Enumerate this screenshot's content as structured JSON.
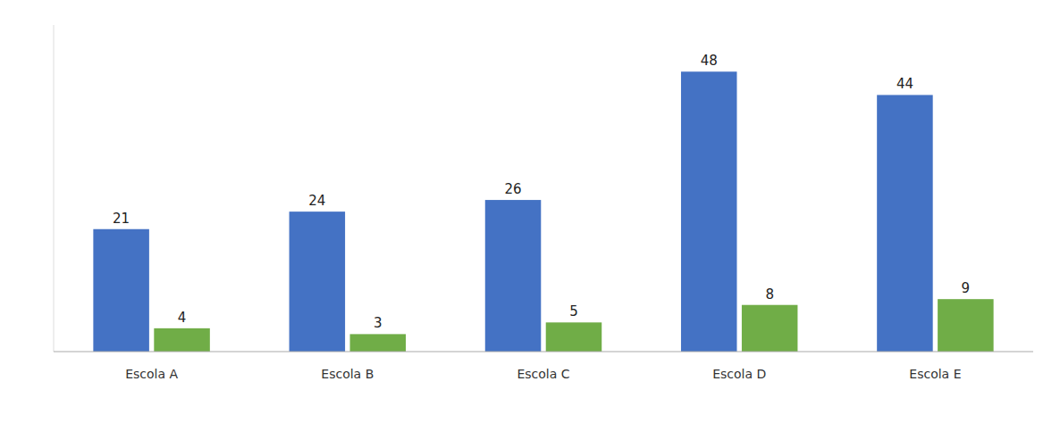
{
  "chart_data": {
    "type": "bar",
    "categories": [
      "Escola A",
      "Escola B",
      "Escola C",
      "Escola D",
      "Escola E"
    ],
    "series": [
      {
        "color": "#4472C4",
        "values": [
          21,
          24,
          26,
          48,
          44
        ]
      },
      {
        "color": "#70AD47",
        "values": [
          4,
          3,
          5,
          8,
          9
        ]
      }
    ],
    "ylim": [
      0,
      56
    ],
    "grid": false,
    "data_labels": true,
    "tick_labels": "x"
  }
}
